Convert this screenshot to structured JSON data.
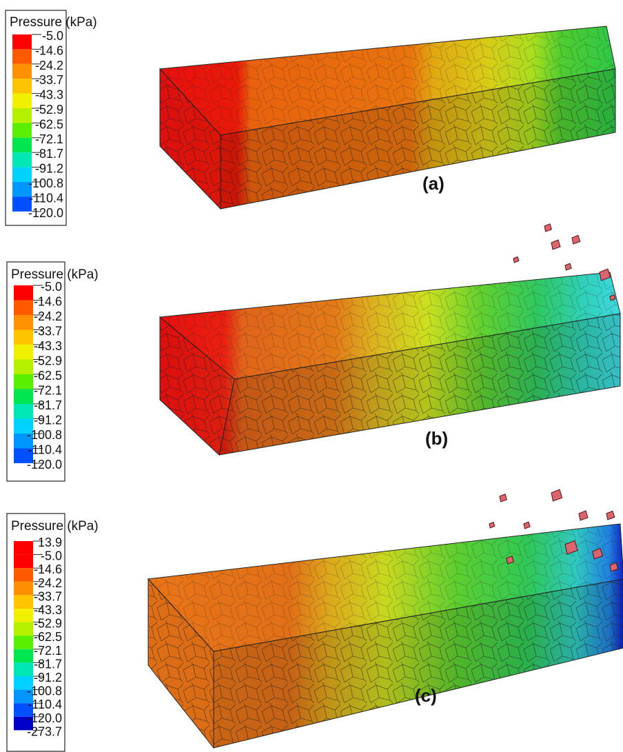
{
  "panels": [
    {
      "legend_title": "Pressure (kPa)",
      "legend_labels": [
        "-5.0",
        "-14.6",
        "-24.2",
        "-33.7",
        "-43.3",
        "-52.9",
        "-62.5",
        "-72.1",
        "-81.7",
        "-91.2",
        "-100.8",
        "-110.4",
        "-120.0"
      ],
      "label": "(a)"
    },
    {
      "legend_title": "Pressure (kPa)",
      "legend_labels": [
        "-5.0",
        "-14.6",
        "-24.2",
        "-33.7",
        "-43.3",
        "-52.9",
        "-62.5",
        "-72.1",
        "-81.7",
        "-91.2",
        "-100.8",
        "-110.4",
        "-120.0"
      ],
      "label": "(b)"
    },
    {
      "legend_title": "Pressure (kPa)",
      "legend_labels": [
        "13.9",
        "-5.0",
        "-14.6",
        "-24.2",
        "-33.7",
        "-43.3",
        "-52.9",
        "-62.5",
        "-72.1",
        "-81.7",
        "-91.2",
        "-100.8",
        "-110.4",
        "-120.0",
        "-273.7"
      ],
      "label": "(c)"
    }
  ]
}
